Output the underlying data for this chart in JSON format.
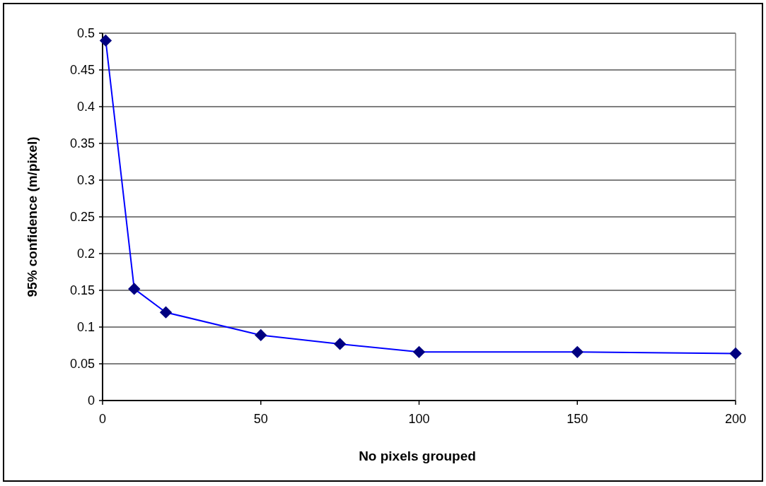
{
  "chart_data": {
    "type": "line",
    "xlabel": "No pixels grouped",
    "ylabel": "95% confidence (m/pixel)",
    "x": [
      1,
      10,
      20,
      50,
      75,
      100,
      150,
      200
    ],
    "series": [
      {
        "color": "#0000ff",
        "values": [
          0.49,
          0.152,
          0.12,
          0.089,
          0.077,
          0.066,
          0.066,
          0.064
        ]
      }
    ],
    "xlim": [
      0,
      200
    ],
    "xticks": [
      0,
      50,
      100,
      150,
      200
    ],
    "ylim": [
      0,
      0.5
    ],
    "yticks": [
      0,
      0.05,
      0.1,
      0.15,
      0.2,
      0.25,
      0.3,
      0.35,
      0.4,
      0.45,
      0.5
    ],
    "grid": "y",
    "marker": "diamond"
  }
}
